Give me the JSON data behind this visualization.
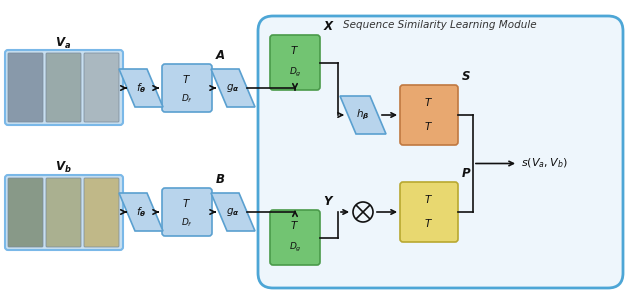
{
  "fig_width": 6.4,
  "fig_height": 3.0,
  "dpi": 100,
  "bg_color": "#ffffff",
  "blue_fc": "#b8d4ec",
  "blue_ec": "#5aa0d0",
  "green_fc": "#72c472",
  "green_ec": "#4a9a4a",
  "orange_fc": "#e8a870",
  "orange_ec": "#c07840",
  "yellow_fc": "#e8d870",
  "yellow_ec": "#b8a830",
  "module_ec": "#4da6d6",
  "module_fc": "#eef6fc",
  "arrow_color": "#111111",
  "img_border_color": "#7ab8e8",
  "img_bg_color": "#c8dff0"
}
